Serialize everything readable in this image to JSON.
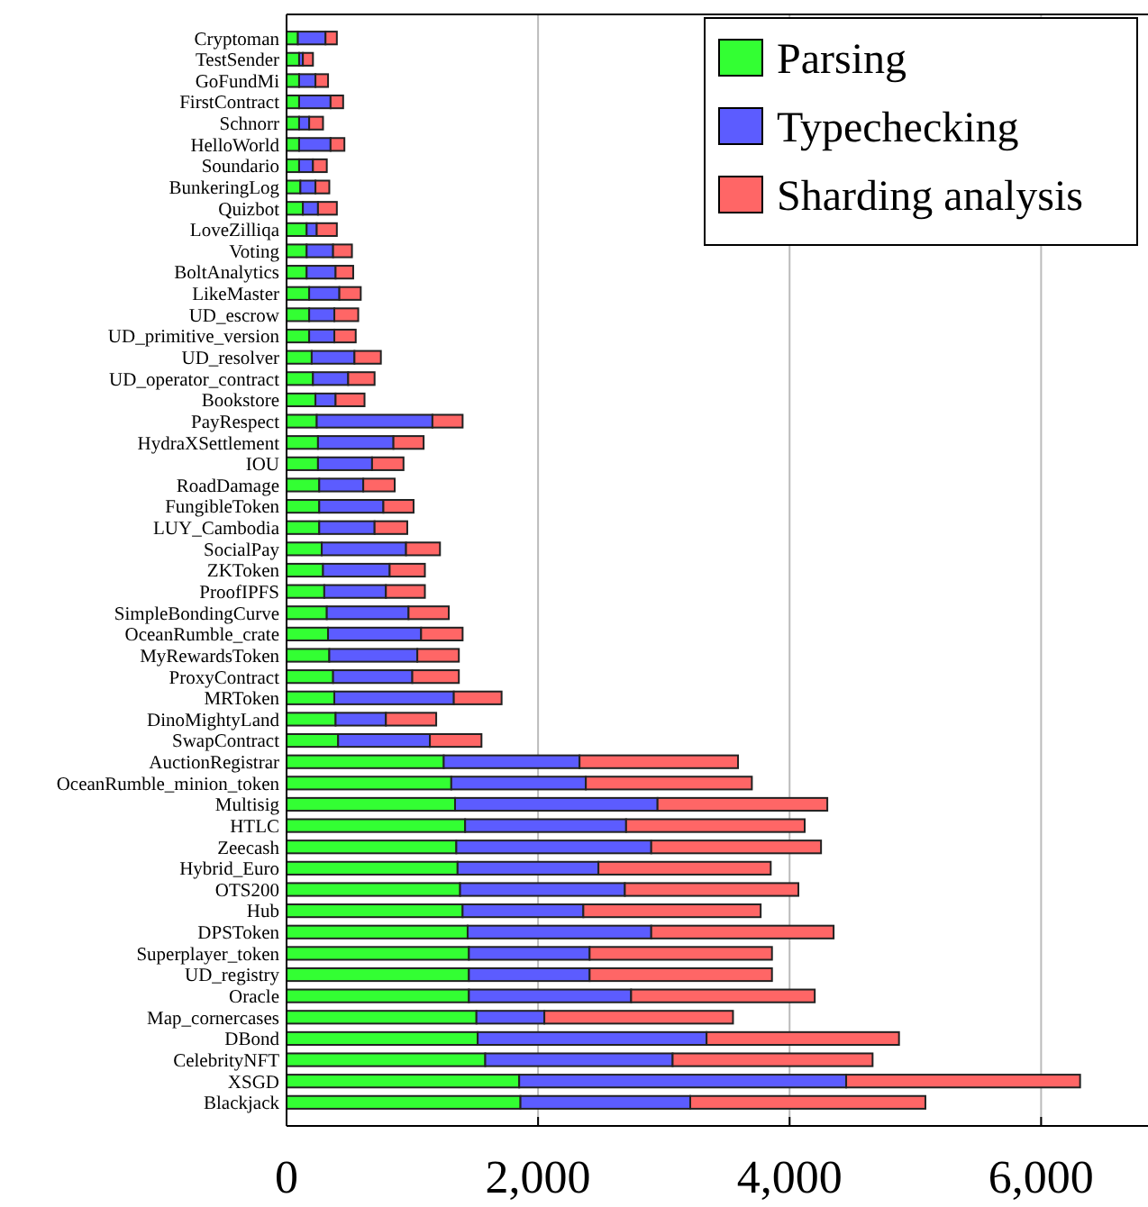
{
  "chart_data": {
    "type": "bar",
    "orientation": "horizontal",
    "stacked": true,
    "categories": [
      "Cryptoman",
      "TestSender",
      "GoFundMi",
      "FirstContract",
      "Schnorr",
      "HelloWorld",
      "Soundario",
      "BunkeringLog",
      "Quizbot",
      "LoveZilliqa",
      "Voting",
      "BoltAnalytics",
      "LikeMaster",
      "UD_escrow",
      "UD_primitive_version",
      "UD_resolver",
      "UD_operator_contract",
      "Bookstore",
      "PayRespect",
      "HydraXSettlement",
      "IOU",
      "RoadDamage",
      "FungibleToken",
      "LUY_Cambodia",
      "SocialPay",
      "ZKToken",
      "ProofIPFS",
      "SimpleBondingCurve",
      "OceanRumble_crate",
      "MyRewardsToken",
      "ProxyContract",
      "MRToken",
      "DinoMightyLand",
      "SwapContract",
      "AuctionRegistrar",
      "OceanRumble_minion_token",
      "Multisig",
      "HTLC",
      "Zeecash",
      "Hybrid_Euro",
      "OTS200",
      "Hub",
      "DPSToken",
      "Superplayer_token",
      "UD_registry",
      "Oracle",
      "Map_cornercases",
      "DBond",
      "CelebrityNFT",
      "XSGD",
      "Blackjack"
    ],
    "series": [
      {
        "name": "Parsing",
        "color": "#33ff33",
        "values": [
          90,
          100,
          100,
          100,
          100,
          100,
          100,
          110,
          130,
          160,
          160,
          160,
          180,
          180,
          180,
          200,
          210,
          230,
          240,
          250,
          250,
          260,
          260,
          260,
          280,
          290,
          300,
          320,
          330,
          340,
          370,
          380,
          390,
          410,
          1250,
          1310,
          1340,
          1420,
          1350,
          1360,
          1380,
          1400,
          1440,
          1450,
          1450,
          1450,
          1510,
          1520,
          1580,
          1850,
          1860
        ]
      },
      {
        "name": "Typechecking",
        "color": "#5c5cff",
        "values": [
          220,
          30,
          130,
          250,
          80,
          250,
          110,
          120,
          120,
          80,
          210,
          230,
          240,
          200,
          200,
          340,
          280,
          160,
          920,
          600,
          430,
          350,
          510,
          440,
          670,
          530,
          490,
          650,
          740,
          700,
          630,
          950,
          400,
          730,
          1080,
          1070,
          1610,
          1280,
          1550,
          1120,
          1310,
          960,
          1460,
          960,
          960,
          1290,
          540,
          1820,
          1490,
          2600,
          1350
        ]
      },
      {
        "name": "Sharding analysis",
        "color": "#ff6666",
        "values": [
          90,
          80,
          100,
          100,
          110,
          110,
          110,
          110,
          150,
          160,
          150,
          140,
          170,
          190,
          170,
          210,
          210,
          230,
          240,
          240,
          250,
          250,
          240,
          260,
          270,
          280,
          310,
          320,
          330,
          330,
          370,
          380,
          400,
          410,
          1260,
          1320,
          1350,
          1420,
          1350,
          1370,
          1380,
          1410,
          1450,
          1450,
          1450,
          1460,
          1500,
          1530,
          1590,
          1860,
          1870
        ]
      }
    ],
    "xlim": [
      0,
      6850
    ],
    "xticks": [
      0,
      {
        "value": 2000,
        "label": "2,000"
      },
      {
        "value": 4000,
        "label": "4,000"
      },
      {
        "value": 6000,
        "label": "6,000"
      }
    ],
    "grid": "x",
    "legend": "top right"
  }
}
